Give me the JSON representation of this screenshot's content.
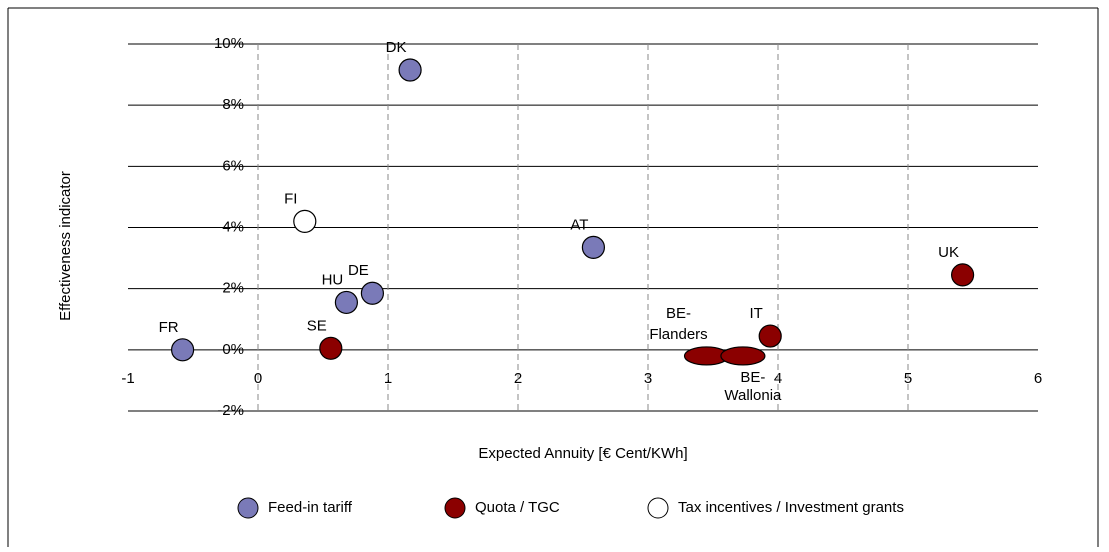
{
  "chart_data": {
    "type": "scatter",
    "x_label": "Expected Annuity [€ Cent/KWh]",
    "y_label": "Effectiveness indicator",
    "xlim": [
      -1,
      6
    ],
    "xticks": [
      -1,
      0,
      1,
      2,
      3,
      4,
      5,
      6
    ],
    "ylim": [
      -2,
      10
    ],
    "yticks": [
      {
        "value": -2,
        "label": "-2%"
      },
      {
        "value": 0,
        "label": "0%"
      },
      {
        "value": 2,
        "label": "2%"
      },
      {
        "value": 4,
        "label": "4%"
      },
      {
        "value": 6,
        "label": "6%"
      },
      {
        "value": 8,
        "label": "8%"
      },
      {
        "value": 10,
        "label": "10%"
      }
    ],
    "grid": true,
    "legend": "bottom",
    "series": [
      {
        "name": "Feed-in tariff",
        "color": "#7a7ab8",
        "x": [
          1.17,
          2.58,
          0.68,
          0.88,
          -0.58
        ],
        "y": [
          9.15,
          3.35,
          1.55,
          1.85,
          0
        ],
        "labels": [
          [
            "DK"
          ],
          [
            "AT"
          ],
          [
            "HU"
          ],
          [
            "DE"
          ],
          [
            "FR"
          ]
        ]
      },
      {
        "name": "Quota / TGC",
        "color": "#8b0000",
        "x": [
          5.42,
          0.56,
          3.94,
          3.45,
          3.73
        ],
        "y": [
          2.45,
          0.05,
          0.45,
          -0.2,
          -0.2
        ],
        "labels": [
          [
            "UK"
          ],
          [
            "SE"
          ],
          [
            "IT"
          ],
          [
            "BE-",
            "Flanders"
          ],
          [
            "BE-",
            "Wallonia"
          ]
        ]
      },
      {
        "name": "Tax incentives / Investment grants",
        "color": "#ffffff",
        "x": [
          0.36
        ],
        "y": [
          4.2
        ],
        "labels": [
          [
            "FI"
          ]
        ]
      }
    ]
  }
}
